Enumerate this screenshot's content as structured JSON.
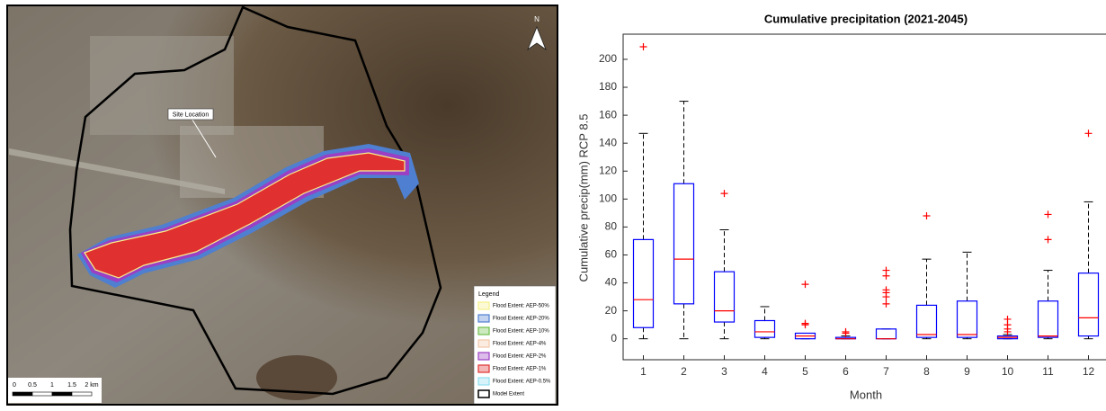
{
  "map": {
    "site_label": "Site Location",
    "north": "N",
    "legend": {
      "title": "Legend",
      "items": [
        {
          "label": "Flood Extent: AEP-50%",
          "color": "#f5f08a"
        },
        {
          "label": "Flood Extent: AEP-20%",
          "color": "#4f7fd0"
        },
        {
          "label": "Flood Extent: AEP-10%",
          "color": "#6fbf4a"
        },
        {
          "label": "Flood Extent: AEP-4%",
          "color": "#f2c9a8"
        },
        {
          "label": "Flood Extent: AEP-2%",
          "color": "#9b3fc4"
        },
        {
          "label": "Flood Extent: AEP-1%",
          "color": "#e03030"
        },
        {
          "label": "Flood Extent: AEP-0.5%",
          "color": "#8fe0f0"
        },
        {
          "label": "Model Extent",
          "color": "#000000"
        }
      ]
    },
    "scale_bar": [
      "0",
      "0.5",
      "1",
      "1.5",
      "2 km"
    ]
  },
  "chart_data": {
    "type": "box",
    "title": "Cumulative precipitation (2021-2045)",
    "xlabel": "Month",
    "ylabel": "Cumulative precip(mm) RCP 8.5",
    "x": [
      1,
      2,
      3,
      4,
      5,
      6,
      7,
      8,
      9,
      10,
      11,
      12
    ],
    "xlim": [
      0.5,
      12.5
    ],
    "xticks": [
      1,
      2,
      3,
      4,
      5,
      6,
      7,
      8,
      9,
      10,
      11,
      12
    ],
    "ylim": [
      -15,
      218
    ],
    "yticks": [
      0,
      20,
      40,
      60,
      80,
      100,
      120,
      140,
      160,
      180,
      200
    ],
    "box_color": "#0000ff",
    "median_color": "#ff0000",
    "whisker_color": "#000000",
    "flier_color": "#ff0000",
    "boxes": [
      {
        "whislo": 0,
        "q1": 8,
        "med": 28,
        "q3": 71,
        "whishi": 147,
        "fliers": [
          209
        ]
      },
      {
        "whislo": 0,
        "q1": 25,
        "med": 57,
        "q3": 111,
        "whishi": 170,
        "fliers": []
      },
      {
        "whislo": 0,
        "q1": 12,
        "med": 20,
        "q3": 48,
        "whishi": 78,
        "fliers": [
          104
        ]
      },
      {
        "whislo": 0,
        "q1": 1,
        "med": 5,
        "q3": 13,
        "whishi": 23,
        "fliers": []
      },
      {
        "whislo": 0,
        "q1": 0,
        "med": 2,
        "q3": 4,
        "whishi": 4,
        "fliers": [
          10,
          11,
          39
        ]
      },
      {
        "whislo": 0,
        "q1": 0,
        "med": 0,
        "q3": 1,
        "whishi": 2,
        "fliers": [
          4,
          5
        ]
      },
      {
        "whislo": 0,
        "q1": 0,
        "med": 0,
        "q3": 7,
        "whishi": 7,
        "fliers": [
          25,
          30,
          33,
          35,
          45,
          49
        ]
      },
      {
        "whislo": 0,
        "q1": 1,
        "med": 3,
        "q3": 24,
        "whishi": 57,
        "fliers": [
          88
        ]
      },
      {
        "whislo": 0,
        "q1": 1,
        "med": 3,
        "q3": 27,
        "whishi": 62,
        "fliers": []
      },
      {
        "whislo": 0,
        "q1": 0,
        "med": 1,
        "q3": 2,
        "whishi": 3,
        "fliers": [
          5,
          7,
          10,
          14
        ]
      },
      {
        "whislo": 0,
        "q1": 1,
        "med": 2,
        "q3": 27,
        "whishi": 49,
        "fliers": [
          71,
          89
        ]
      },
      {
        "whislo": 0,
        "q1": 2,
        "med": 15,
        "q3": 47,
        "whishi": 98,
        "fliers": [
          147
        ]
      }
    ]
  }
}
